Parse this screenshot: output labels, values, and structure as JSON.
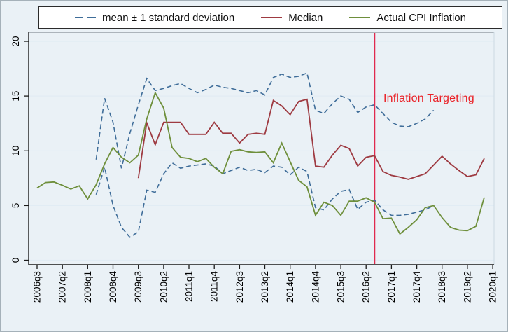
{
  "figure": {
    "kind": "stata-style line chart",
    "background": "#eaf1f6",
    "plot_background": "#ffffff",
    "gridline_color": "#e1ecf4"
  },
  "legend": {
    "items": [
      {
        "key": "mean-band",
        "label": "mean ± 1 standard deviation",
        "style": "dashed",
        "color": "#3f6d99"
      },
      {
        "key": "median",
        "label": "Median",
        "style": "solid",
        "color": "#9e3a41"
      },
      {
        "key": "actual-cpi",
        "label": "Actual CPI Inflation",
        "style": "solid",
        "color": "#6e8f3b"
      }
    ]
  },
  "annotation": {
    "text": "Inflation Targeting",
    "color": "#ea2127"
  },
  "chart_data": {
    "type": "line",
    "title": "",
    "xlabel": "",
    "ylabel": "",
    "grid": true,
    "legend_position": "top",
    "ylim": [
      0,
      20.8
    ],
    "yticks": [
      0,
      5,
      10,
      15,
      20
    ],
    "x": [
      "2006q3",
      "2006q4",
      "2007q1",
      "2007q2",
      "2007q3",
      "2007q4",
      "2008q1",
      "2008q2",
      "2008q3",
      "2008q4",
      "2009q1",
      "2009q2",
      "2009q3",
      "2009q4",
      "2010q1",
      "2010q2",
      "2010q3",
      "2010q4",
      "2011q1",
      "2011q2",
      "2011q3",
      "2011q4",
      "2012q1",
      "2012q2",
      "2012q3",
      "2012q4",
      "2013q1",
      "2013q2",
      "2013q3",
      "2013q4",
      "2014q1",
      "2014q2",
      "2014q3",
      "2014q4",
      "2015q1",
      "2015q2",
      "2015q3",
      "2015q4",
      "2016q1",
      "2016q2",
      "2016q3",
      "2016q4",
      "2017q1",
      "2017q2",
      "2017q3",
      "2017q4",
      "2018q1",
      "2018q2",
      "2018q3",
      "2018q4",
      "2019q1",
      "2019q2",
      "2019q3",
      "2019q4",
      "2020q1"
    ],
    "x_tick_labels": [
      "2006q3",
      "2007q2",
      "2008q1",
      "2008q4",
      "2009q3",
      "2010q2",
      "2011q1",
      "2011q4",
      "2012q3",
      "2013q2",
      "2014q1",
      "2014q4",
      "2015q3",
      "2016q2",
      "2017q1",
      "2017q4",
      "2018q3",
      "2019q2",
      "2020q1"
    ],
    "x_tick_every": 3,
    "series": [
      {
        "name": "mean + 1 standard deviation",
        "key": "mean-plus-sd",
        "color": "#3f6d99",
        "dashed": true,
        "width": 1.6,
        "values": [
          null,
          null,
          null,
          null,
          null,
          null,
          null,
          9.2,
          14.8,
          12.6,
          8.4,
          11.6,
          14.2,
          16.6,
          15.5,
          15.7,
          15.95,
          16.15,
          15.7,
          15.3,
          15.6,
          16.0,
          15.8,
          15.7,
          15.5,
          15.3,
          15.5,
          15.1,
          16.7,
          17.0,
          16.7,
          16.8,
          17.1,
          13.7,
          13.4,
          14.3,
          15.0,
          14.7,
          13.5,
          14.0,
          14.2,
          13.4,
          12.6,
          12.25,
          12.2,
          12.5,
          12.9,
          13.7,
          null,
          null,
          null,
          null,
          null,
          null,
          null
        ]
      },
      {
        "name": "mean - 1 standard deviation",
        "key": "mean-minus-sd",
        "color": "#3f6d99",
        "dashed": true,
        "width": 1.6,
        "values": [
          null,
          null,
          null,
          null,
          null,
          null,
          null,
          6.0,
          8.5,
          5.0,
          3.0,
          2.1,
          2.6,
          6.4,
          6.2,
          7.9,
          8.9,
          8.4,
          8.6,
          8.7,
          8.8,
          8.6,
          7.9,
          8.2,
          8.5,
          8.2,
          8.3,
          8.0,
          8.6,
          8.5,
          7.8,
          8.5,
          8.1,
          4.8,
          4.6,
          5.6,
          6.3,
          6.45,
          4.65,
          5.3,
          5.5,
          4.6,
          4.1,
          4.1,
          4.2,
          4.4,
          4.6,
          5.0,
          null,
          null,
          null,
          null,
          null,
          null,
          null
        ]
      },
      {
        "name": "Median",
        "key": "median",
        "color": "#9e3a41",
        "dashed": false,
        "width": 1.8,
        "values": [
          null,
          null,
          null,
          null,
          null,
          null,
          null,
          null,
          null,
          null,
          null,
          null,
          7.5,
          12.55,
          10.55,
          12.6,
          12.6,
          12.6,
          11.5,
          11.5,
          11.5,
          12.6,
          11.6,
          11.6,
          10.7,
          11.5,
          11.6,
          11.5,
          14.6,
          14.1,
          13.3,
          14.5,
          14.7,
          8.6,
          8.5,
          9.6,
          10.5,
          10.2,
          8.6,
          9.4,
          9.55,
          8.1,
          7.75,
          7.6,
          7.4,
          7.65,
          7.9,
          8.7,
          9.5,
          8.8,
          8.2,
          7.65,
          7.8,
          9.3,
          null
        ]
      },
      {
        "name": "Actual CPI Inflation",
        "key": "actual-cpi",
        "color": "#6e8f3b",
        "dashed": false,
        "width": 1.8,
        "values": [
          6.6,
          7.1,
          7.15,
          6.85,
          6.5,
          6.8,
          5.6,
          6.9,
          8.8,
          10.3,
          9.4,
          8.9,
          9.6,
          12.9,
          15.3,
          13.9,
          10.3,
          9.4,
          9.3,
          9.0,
          9.3,
          8.5,
          7.9,
          9.95,
          10.1,
          9.9,
          9.85,
          9.9,
          8.9,
          10.7,
          9.0,
          7.3,
          6.7,
          4.1,
          5.3,
          5.0,
          4.1,
          5.4,
          5.4,
          5.7,
          5.3,
          3.8,
          3.85,
          2.4,
          3.0,
          3.7,
          4.8,
          5.0,
          3.9,
          3.0,
          2.75,
          2.7,
          3.1,
          5.75,
          null
        ]
      }
    ],
    "vline": {
      "x": "2016q3",
      "color": "#e0294e",
      "label": "Inflation Targeting"
    }
  }
}
